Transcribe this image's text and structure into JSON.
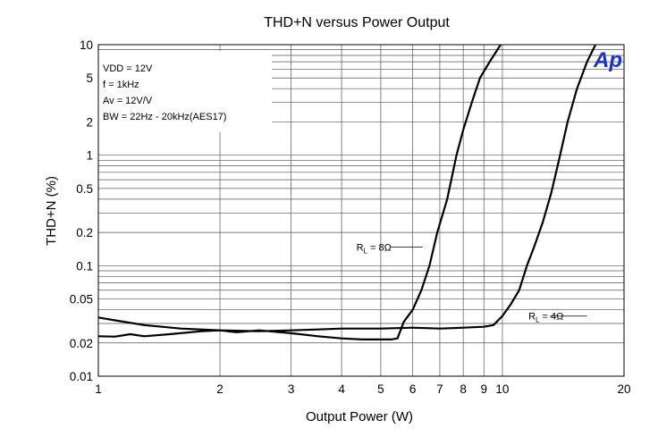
{
  "chart_data": {
    "type": "line",
    "title": "THD+N versus Power Output",
    "xlabel": "Output Power (W)",
    "ylabel": "THD+N (%)",
    "xscale": "log",
    "yscale": "log",
    "xlim": [
      1,
      20
    ],
    "ylim": [
      0.01,
      10
    ],
    "grid": true,
    "xticks": [
      1,
      2,
      3,
      4,
      5,
      6,
      7,
      8,
      9,
      10,
      20
    ],
    "xtick_labels": [
      "1",
      "2",
      "3",
      "4",
      "5",
      "6",
      "7",
      "8",
      "9",
      "10",
      "20"
    ],
    "yticks": [
      0.01,
      0.02,
      0.05,
      0.1,
      0.2,
      0.5,
      1,
      2,
      5,
      10
    ],
    "ytick_labels": [
      "0.01",
      "0.02",
      "0.05",
      "0.1",
      "0.2",
      "0.5",
      "1",
      "2",
      "5",
      "10"
    ],
    "annotation_lines": [
      "VDD = 12V",
      "f = 1kHz",
      "Av = 12V/V",
      "BW = 22Hz - 20kHz(AES17)"
    ],
    "logo_text": "Ap",
    "series": [
      {
        "name": "RL = 8Ω",
        "label_main": "R",
        "label_sub": "L",
        "label_tail": " = 8Ω",
        "points": [
          [
            1.0,
            0.023
          ],
          [
            1.1,
            0.0228
          ],
          [
            1.2,
            0.024
          ],
          [
            1.3,
            0.023
          ],
          [
            1.5,
            0.024
          ],
          [
            1.8,
            0.0255
          ],
          [
            2.0,
            0.026
          ],
          [
            2.2,
            0.025
          ],
          [
            2.5,
            0.026
          ],
          [
            3.0,
            0.0245
          ],
          [
            3.5,
            0.023
          ],
          [
            4.0,
            0.022
          ],
          [
            4.5,
            0.0215
          ],
          [
            5.0,
            0.0215
          ],
          [
            5.3,
            0.0215
          ],
          [
            5.5,
            0.022
          ],
          [
            5.7,
            0.031
          ],
          [
            6.0,
            0.04
          ],
          [
            6.3,
            0.06
          ],
          [
            6.6,
            0.1
          ],
          [
            6.9,
            0.2
          ],
          [
            7.3,
            0.4
          ],
          [
            7.7,
            1.0
          ],
          [
            8.0,
            1.7
          ],
          [
            8.4,
            3.0
          ],
          [
            8.8,
            5.0
          ],
          [
            9.3,
            7.0
          ],
          [
            9.9,
            10.0
          ]
        ]
      },
      {
        "name": "RL = 4Ω",
        "label_main": "R",
        "label_sub": "L",
        "label_tail": " = 4Ω",
        "points": [
          [
            1.0,
            0.034
          ],
          [
            1.1,
            0.032
          ],
          [
            1.3,
            0.029
          ],
          [
            1.6,
            0.027
          ],
          [
            2.0,
            0.026
          ],
          [
            2.5,
            0.0255
          ],
          [
            3.0,
            0.026
          ],
          [
            3.5,
            0.0265
          ],
          [
            4.0,
            0.027
          ],
          [
            5.0,
            0.027
          ],
          [
            6.0,
            0.0275
          ],
          [
            7.0,
            0.027
          ],
          [
            8.0,
            0.0275
          ],
          [
            9.0,
            0.028
          ],
          [
            9.5,
            0.029
          ],
          [
            10.0,
            0.035
          ],
          [
            10.5,
            0.045
          ],
          [
            11.0,
            0.06
          ],
          [
            11.5,
            0.1
          ],
          [
            12.0,
            0.15
          ],
          [
            12.6,
            0.25
          ],
          [
            13.2,
            0.45
          ],
          [
            13.8,
            0.9
          ],
          [
            14.5,
            2.0
          ],
          [
            15.3,
            4.0
          ],
          [
            16.2,
            7.0
          ],
          [
            17.0,
            10.0
          ]
        ]
      }
    ]
  }
}
